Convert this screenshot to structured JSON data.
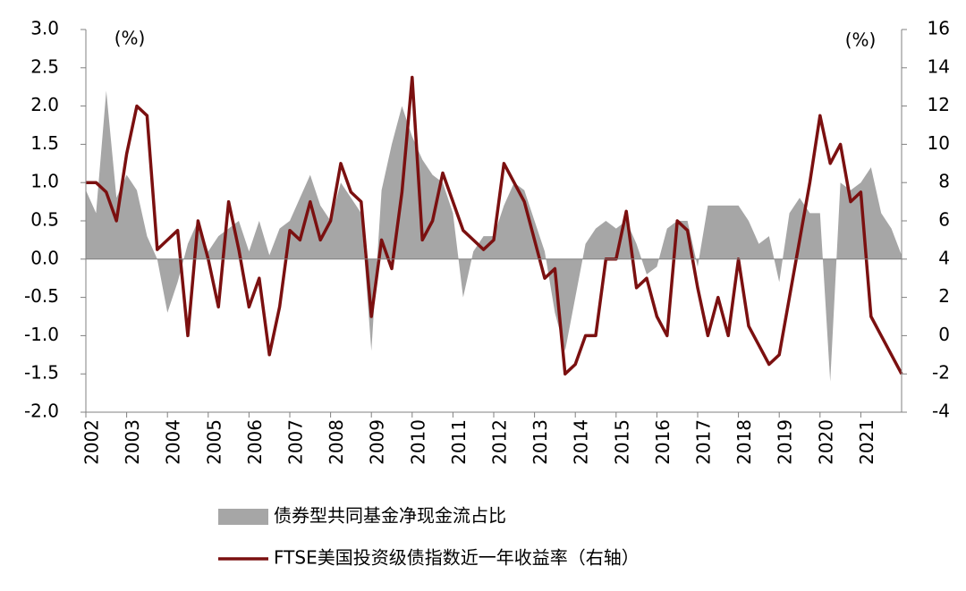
{
  "chart_data": {
    "type": "area_line",
    "y_label": "(%)",
    "y2_label": "(%)",
    "x": [
      2002,
      2002.25,
      2002.5,
      2002.75,
      2003,
      2003.25,
      2003.5,
      2003.75,
      2004,
      2004.25,
      2004.5,
      2004.75,
      2005,
      2005.25,
      2005.5,
      2005.75,
      2006,
      2006.25,
      2006.5,
      2006.75,
      2007,
      2007.25,
      2007.5,
      2007.75,
      2008,
      2008.25,
      2008.5,
      2008.75,
      2009,
      2009.25,
      2009.5,
      2009.75,
      2010,
      2010.25,
      2010.5,
      2010.75,
      2011,
      2011.25,
      2011.5,
      2011.75,
      2012,
      2012.25,
      2012.5,
      2012.75,
      2013,
      2013.25,
      2013.5,
      2013.75,
      2014,
      2014.25,
      2014.5,
      2014.75,
      2015,
      2015.25,
      2015.5,
      2015.75,
      2016,
      2016.25,
      2016.5,
      2016.75,
      2017,
      2017.25,
      2017.5,
      2017.75,
      2018,
      2018.25,
      2018.5,
      2018.75,
      2019,
      2019.25,
      2019.5,
      2019.75,
      2020,
      2020.25,
      2020.5,
      2020.75,
      2021,
      2021.25,
      2021.5,
      2021.75,
      2022
    ],
    "series": [
      {
        "name": "债券型共同基金净现金流占比",
        "color": "#a6a6a6",
        "kind": "area",
        "values": [
          0.9,
          0.6,
          2.2,
          0.8,
          1.1,
          0.9,
          0.3,
          0.0,
          -0.7,
          -0.3,
          0.2,
          0.5,
          0.1,
          0.3,
          0.4,
          0.5,
          0.1,
          0.5,
          0.05,
          0.4,
          0.5,
          0.8,
          1.1,
          0.7,
          0.5,
          1.0,
          0.8,
          0.6,
          -1.2,
          0.9,
          1.5,
          2.0,
          1.6,
          1.3,
          1.1,
          1.0,
          0.6,
          -0.5,
          0.1,
          0.3,
          0.3,
          0.7,
          1.0,
          0.9,
          0.5,
          0.1,
          -0.7,
          -1.2,
          -0.5,
          0.2,
          0.4,
          0.5,
          0.4,
          0.5,
          0.2,
          -0.2,
          -0.1,
          0.4,
          0.5,
          0.5,
          -0.1,
          0.7,
          0.7,
          0.7,
          0.7,
          0.5,
          0.2,
          0.3,
          -0.3,
          0.6,
          0.8,
          0.6,
          0.6,
          -1.6,
          1.0,
          0.9,
          1.0,
          1.2,
          0.6,
          0.4,
          0.05
        ]
      },
      {
        "name": "FTSE美国投资级债指数近一年收益率（右轴）",
        "color": "#7b1010",
        "kind": "line",
        "axis": "y2",
        "values": [
          8,
          8,
          7.5,
          6,
          9.5,
          12,
          11.5,
          4.5,
          5,
          5.5,
          0,
          6,
          4,
          1.5,
          7,
          4.5,
          1.5,
          3,
          -1,
          1.5,
          5.5,
          5,
          7,
          5,
          6,
          9,
          7.5,
          7,
          1,
          5,
          3.5,
          7.5,
          13.5,
          5,
          6,
          8.5,
          7,
          5.5,
          5,
          4.5,
          5,
          9,
          8,
          7,
          5,
          3,
          3.5,
          -2,
          -1.5,
          0,
          0,
          4,
          4,
          6.5,
          2.5,
          3,
          1,
          0,
          6,
          5.5,
          2.5,
          0,
          2,
          0,
          4,
          0.5,
          -0.5,
          -1.5,
          -1,
          2,
          5,
          8,
          11.5,
          9,
          10,
          7,
          7.5,
          1,
          0,
          -1,
          -2
        ]
      }
    ],
    "xlim": [
      2002,
      2022
    ],
    "xticks": [
      2002,
      2003,
      2004,
      2005,
      2006,
      2007,
      2008,
      2009,
      2010,
      2011,
      2012,
      2013,
      2014,
      2015,
      2016,
      2017,
      2018,
      2019,
      2020,
      2021
    ],
    "ylim": [
      -2,
      3
    ],
    "yticks": [
      {
        "value": 3,
        "label": "3.0"
      },
      {
        "value": 2.5,
        "label": "2.5"
      },
      {
        "value": 2,
        "label": "2.0"
      },
      {
        "value": 1.5,
        "label": "1.5"
      },
      {
        "value": 1,
        "label": "1.0"
      },
      {
        "value": 0.5,
        "label": "0.5"
      },
      {
        "value": 0,
        "label": "0.0"
      },
      {
        "value": -0.5,
        "label": "-0.5"
      },
      {
        "value": -1,
        "label": "-1.0"
      },
      {
        "value": -1.5,
        "label": "-1.5"
      },
      {
        "value": -2,
        "label": "-2.0"
      }
    ],
    "y2lim": [
      -4,
      16
    ],
    "y2ticks": [
      16,
      14,
      12,
      10,
      8,
      6,
      4,
      2,
      0,
      -2,
      -4
    ]
  }
}
